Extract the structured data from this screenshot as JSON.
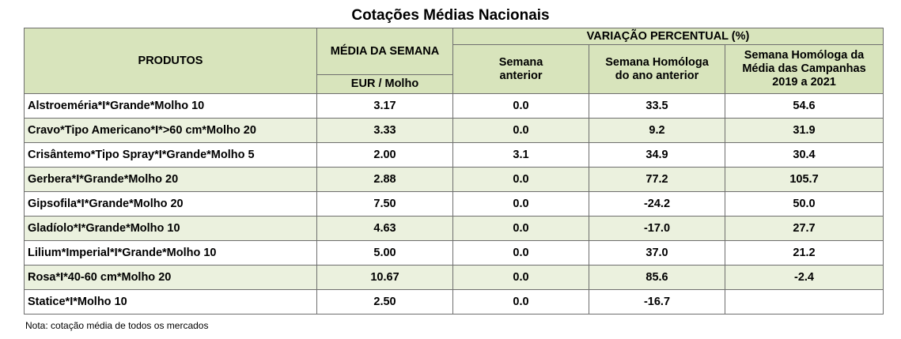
{
  "title": "Cotações Médias Nacionais",
  "table": {
    "header": {
      "product": "PRODUTOS",
      "average": "MÉDIA DA SEMANA",
      "unit": "EUR / Molho",
      "variation": "VARIAÇÃO PERCENTUAL (%)",
      "columns": [
        "Semana\nanterior",
        "Semana Homóloga\ndo ano anterior",
        "Semana Homóloga da\nMédia das Campanhas\n2019 a 2021"
      ]
    },
    "rows": [
      [
        "Alstroeméria*I*Grande*Molho 10",
        "3.17",
        "0.0",
        "33.5",
        "54.6"
      ],
      [
        "Cravo*Tipo Americano*I*>60 cm*Molho 20",
        "3.33",
        "0.0",
        "9.2",
        "31.9"
      ],
      [
        "Crisântemo*Tipo Spray*I*Grande*Molho 5",
        "2.00",
        "3.1",
        "34.9",
        "30.4"
      ],
      [
        "Gerbera*I*Grande*Molho 20",
        "2.88",
        "0.0",
        "77.2",
        "105.7"
      ],
      [
        "Gipsofila*I*Grande*Molho 20",
        "7.50",
        "0.0",
        "-24.2",
        "50.0"
      ],
      [
        "Gladíolo*I*Grande*Molho 10",
        "4.63",
        "0.0",
        "-17.0",
        "27.7"
      ],
      [
        "Lilium*Imperial*I*Grande*Molho 10",
        "5.00",
        "0.0",
        "37.0",
        "21.2"
      ],
      [
        "Rosa*I*40-60 cm*Molho 20",
        "10.67",
        "0.0",
        "85.6",
        "-2.4"
      ],
      [
        "Statice*I*Molho 10",
        "2.50",
        "0.0",
        "-16.7",
        null
      ]
    ]
  },
  "note": "Nota: cotação média de todos os mercados"
}
